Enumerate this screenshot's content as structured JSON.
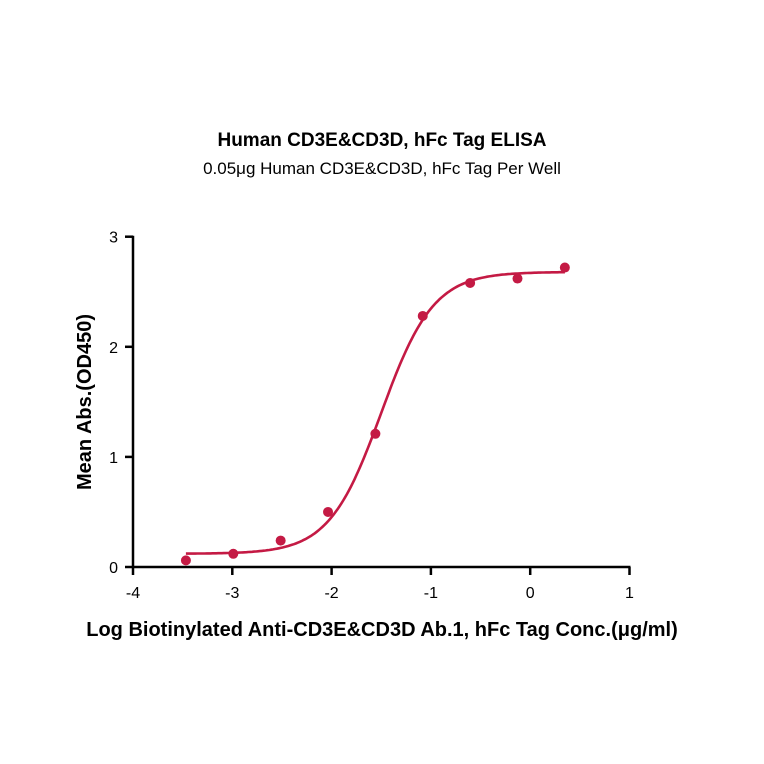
{
  "chart_data": {
    "type": "scatter",
    "title": "Human CD3E&CD3D, hFc Tag ELISA",
    "subtitle": "0.05μg Human CD3E&CD3D,  hFc Tag Per Well",
    "xlabel": "Log Biotinylated Anti-CD3E&CD3D Ab.1, hFc Tag Conc.(μg/ml)",
    "ylabel": "Mean Abs.(OD450)",
    "xlim": [
      -4,
      1
    ],
    "ylim": [
      0,
      3
    ],
    "xticks": [
      "-4",
      "-3",
      "-2",
      "-1",
      "0",
      "1"
    ],
    "yticks": [
      "0",
      "1",
      "2",
      "3"
    ],
    "grid": false,
    "color": "#c41a44",
    "points": {
      "x": [
        -3.467,
        -2.99,
        -2.513,
        -2.036,
        -1.559,
        -1.082,
        -0.605,
        -0.128,
        0.349
      ],
      "y": [
        0.06,
        0.12,
        0.24,
        0.5,
        1.21,
        2.28,
        2.58,
        2.62,
        2.72
      ]
    },
    "fit": {
      "model": "4PL",
      "bottom": 0.12,
      "top": 2.68,
      "logEC50": -1.5,
      "hill": 1.65
    }
  }
}
